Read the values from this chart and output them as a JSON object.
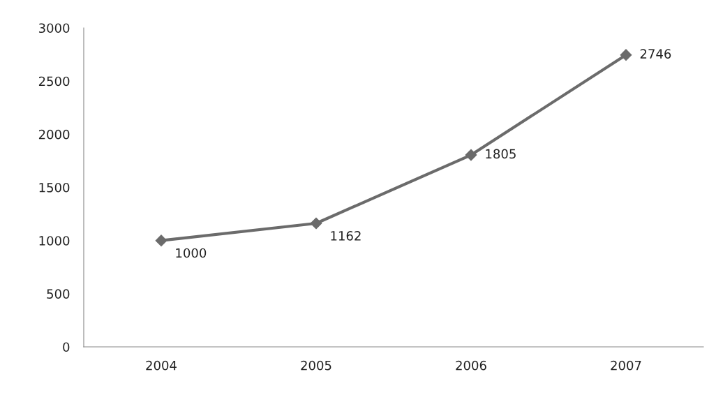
{
  "chart_data": {
    "type": "line",
    "categories": [
      "2004",
      "2005",
      "2006",
      "2007"
    ],
    "series": [
      {
        "color": "#6b6b6b",
        "values": [
          1000,
          1162,
          1805,
          2746
        ]
      }
    ],
    "ylim": [
      0,
      3000
    ],
    "yticks": [
      0,
      500,
      1000,
      1500,
      2000,
      2500,
      3000
    ],
    "data_labels": true,
    "marker": "diamond",
    "line_style": "solid",
    "grid": false,
    "legend": false
  }
}
